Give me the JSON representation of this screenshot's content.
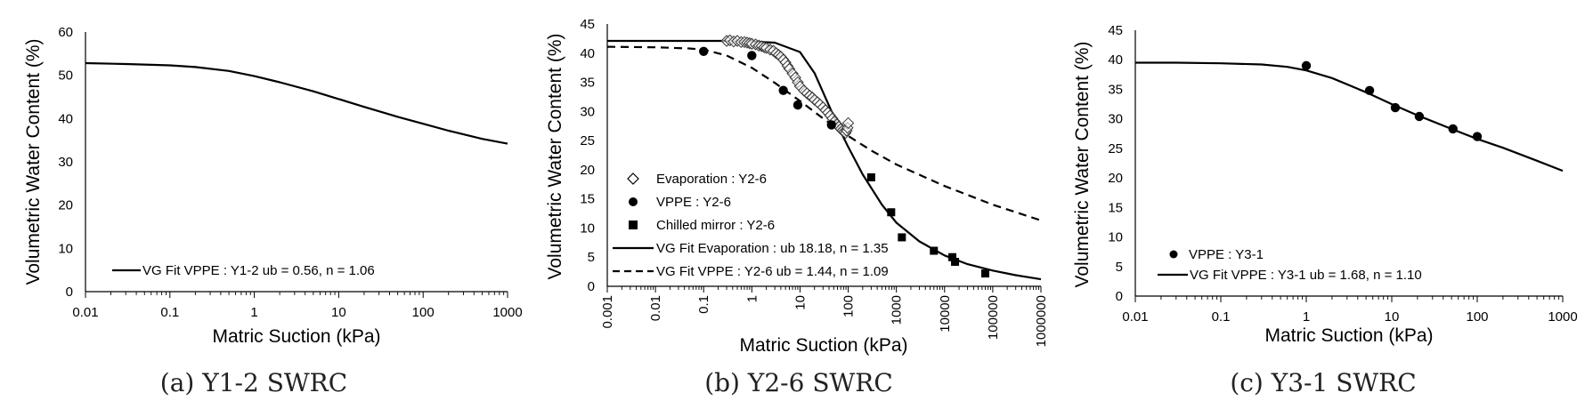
{
  "chart_data": [
    {
      "type": "line",
      "caption": "(a) Y1-2 SWRC",
      "xlabel": "Matric Suction (kPa)",
      "ylabel": "Volumetric Water Content (%)",
      "xscale": "log",
      "xlim": [
        0.01,
        1000
      ],
      "ylim": [
        0,
        60
      ],
      "x_ticks": [
        "0.01",
        "0.1",
        "1",
        "10",
        "100",
        "1000"
      ],
      "y_ticks": [
        "0",
        "10",
        "20",
        "30",
        "40",
        "50",
        "60"
      ],
      "legend_position": "bottom-left",
      "series": [
        {
          "name": "VG Fit VPPE : Y1-2 ub = 0.56, n = 1.06",
          "style": "solid-line",
          "x": [
            0.01,
            0.03,
            0.1,
            0.2,
            0.5,
            1,
            2,
            5,
            10,
            20,
            50,
            100,
            200,
            500,
            1000
          ],
          "y": [
            52.8,
            52.6,
            52.3,
            51.9,
            51.0,
            49.8,
            48.4,
            46.3,
            44.5,
            42.7,
            40.4,
            38.8,
            37.2,
            35.3,
            34.2
          ]
        }
      ]
    },
    {
      "type": "scatter",
      "caption": "(b) Y2-6 SWRC",
      "xlabel": "Matric Suction (kPa)",
      "ylabel": "Volumetric Water Content (%)",
      "xscale": "log",
      "xlim": [
        0.001,
        1000000
      ],
      "ylim": [
        0,
        45
      ],
      "x_ticks": [
        "0.001",
        "0.01",
        "0.1",
        "1",
        "10",
        "100",
        "1000",
        "10000",
        "100000",
        "1000000"
      ],
      "y_ticks": [
        "0",
        "5",
        "10",
        "15",
        "20",
        "25",
        "30",
        "35",
        "40",
        "45"
      ],
      "legend_position": "bottom-left",
      "series": [
        {
          "name": "Evaporation : Y2-6",
          "style": "diamond-open",
          "x": [
            0.3,
            0.35,
            0.42,
            0.5,
            0.6,
            0.7,
            0.8,
            0.9,
            1.0,
            1.2,
            1.4,
            1.6,
            1.8,
            2.0,
            2.4,
            2.8,
            3.2,
            3.6,
            4.0,
            4.5,
            5.0,
            5.5,
            6.0,
            7.0,
            8.0,
            9.0,
            10,
            12,
            14,
            16,
            18,
            20,
            23,
            26,
            30,
            34,
            38,
            42,
            47,
            52,
            58,
            64,
            70,
            76,
            82,
            88,
            93,
            97,
            100
          ],
          "y": [
            42.1,
            42.2,
            42.0,
            42.1,
            41.9,
            41.9,
            41.8,
            41.7,
            41.6,
            41.5,
            41.3,
            41.2,
            41.0,
            40.9,
            40.6,
            40.4,
            40.0,
            39.7,
            39.4,
            38.9,
            38.4,
            37.8,
            37.3,
            36.5,
            35.8,
            35.0,
            34.3,
            33.6,
            33.1,
            32.7,
            32.4,
            32.0,
            31.6,
            31.2,
            30.7,
            30.2,
            29.8,
            29.3,
            28.8,
            28.3,
            27.8,
            27.4,
            27.0,
            26.7,
            26.5,
            26.3,
            26.7,
            27.2,
            28.0
          ]
        },
        {
          "name": "VPPE : Y2-6",
          "style": "circle-filled",
          "x": [
            0.1,
            1,
            4.5,
            9,
            45
          ],
          "y": [
            40.3,
            39.6,
            33.6,
            31.1,
            27.7
          ]
        },
        {
          "name": "Chilled mirror : Y2-6",
          "style": "square-filled",
          "x": [
            300,
            780,
            1300,
            6000,
            14500,
            16500,
            70000
          ],
          "y": [
            18.7,
            12.7,
            8.4,
            6.1,
            5.0,
            4.2,
            2.2
          ]
        },
        {
          "name": "VG Fit Evaporation : ub 18.18, n = 1.35",
          "style": "solid-line",
          "x": [
            0.001,
            0.01,
            0.1,
            0.5,
            1,
            3,
            10,
            20,
            40,
            70,
            100,
            200,
            500,
            1000,
            3000,
            10000,
            30000,
            100000,
            300000,
            1000000
          ],
          "y": [
            42.1,
            42.1,
            42.1,
            42.1,
            42.0,
            41.8,
            40.2,
            36.6,
            31.0,
            26.5,
            23.9,
            19.2,
            14.0,
            10.9,
            7.7,
            5.3,
            3.8,
            2.7,
            1.9,
            1.2
          ]
        },
        {
          "name": "VG Fit VPPE : Y2-6 ub = 1.44, n = 1.09",
          "style": "dashed-line",
          "x": [
            0.001,
            0.01,
            0.05,
            0.1,
            0.3,
            1,
            3,
            10,
            30,
            100,
            300,
            1000,
            10000,
            100000,
            1000000
          ],
          "y": [
            41.1,
            41.0,
            40.8,
            40.6,
            39.6,
            37.5,
            34.9,
            31.8,
            28.8,
            25.8,
            23.3,
            20.9,
            17.2,
            14.0,
            11.3
          ]
        }
      ]
    },
    {
      "type": "scatter",
      "caption": "(c) Y3-1 SWRC",
      "xlabel": "Matric Suction (kPa)",
      "ylabel": "Volumetric Water Content (%)",
      "xscale": "log",
      "xlim": [
        0.01,
        1000
      ],
      "ylim": [
        0,
        45
      ],
      "x_ticks": [
        "0.01",
        "0.1",
        "1",
        "10",
        "100",
        "1000"
      ],
      "y_ticks": [
        "0",
        "5",
        "10",
        "15",
        "20",
        "25",
        "30",
        "35",
        "40",
        "45"
      ],
      "legend_position": "bottom-left",
      "series": [
        {
          "name": "VPPE : Y3-1",
          "style": "circle-filled",
          "x": [
            1,
            5.5,
            11,
            21,
            52,
            100
          ],
          "y": [
            39.0,
            34.8,
            31.9,
            30.4,
            28.3,
            27.0
          ]
        },
        {
          "name": "VG Fit VPPE : Y3-1 ub = 1.68, n = 1.10",
          "style": "solid-line",
          "x": [
            0.01,
            0.03,
            0.1,
            0.3,
            0.6,
            1,
            2,
            5,
            10,
            20,
            50,
            100,
            200,
            500,
            1000
          ],
          "y": [
            39.5,
            39.5,
            39.4,
            39.2,
            38.8,
            38.2,
            36.9,
            34.5,
            32.5,
            30.6,
            28.3,
            26.6,
            25.1,
            22.9,
            21.2
          ]
        }
      ]
    }
  ]
}
